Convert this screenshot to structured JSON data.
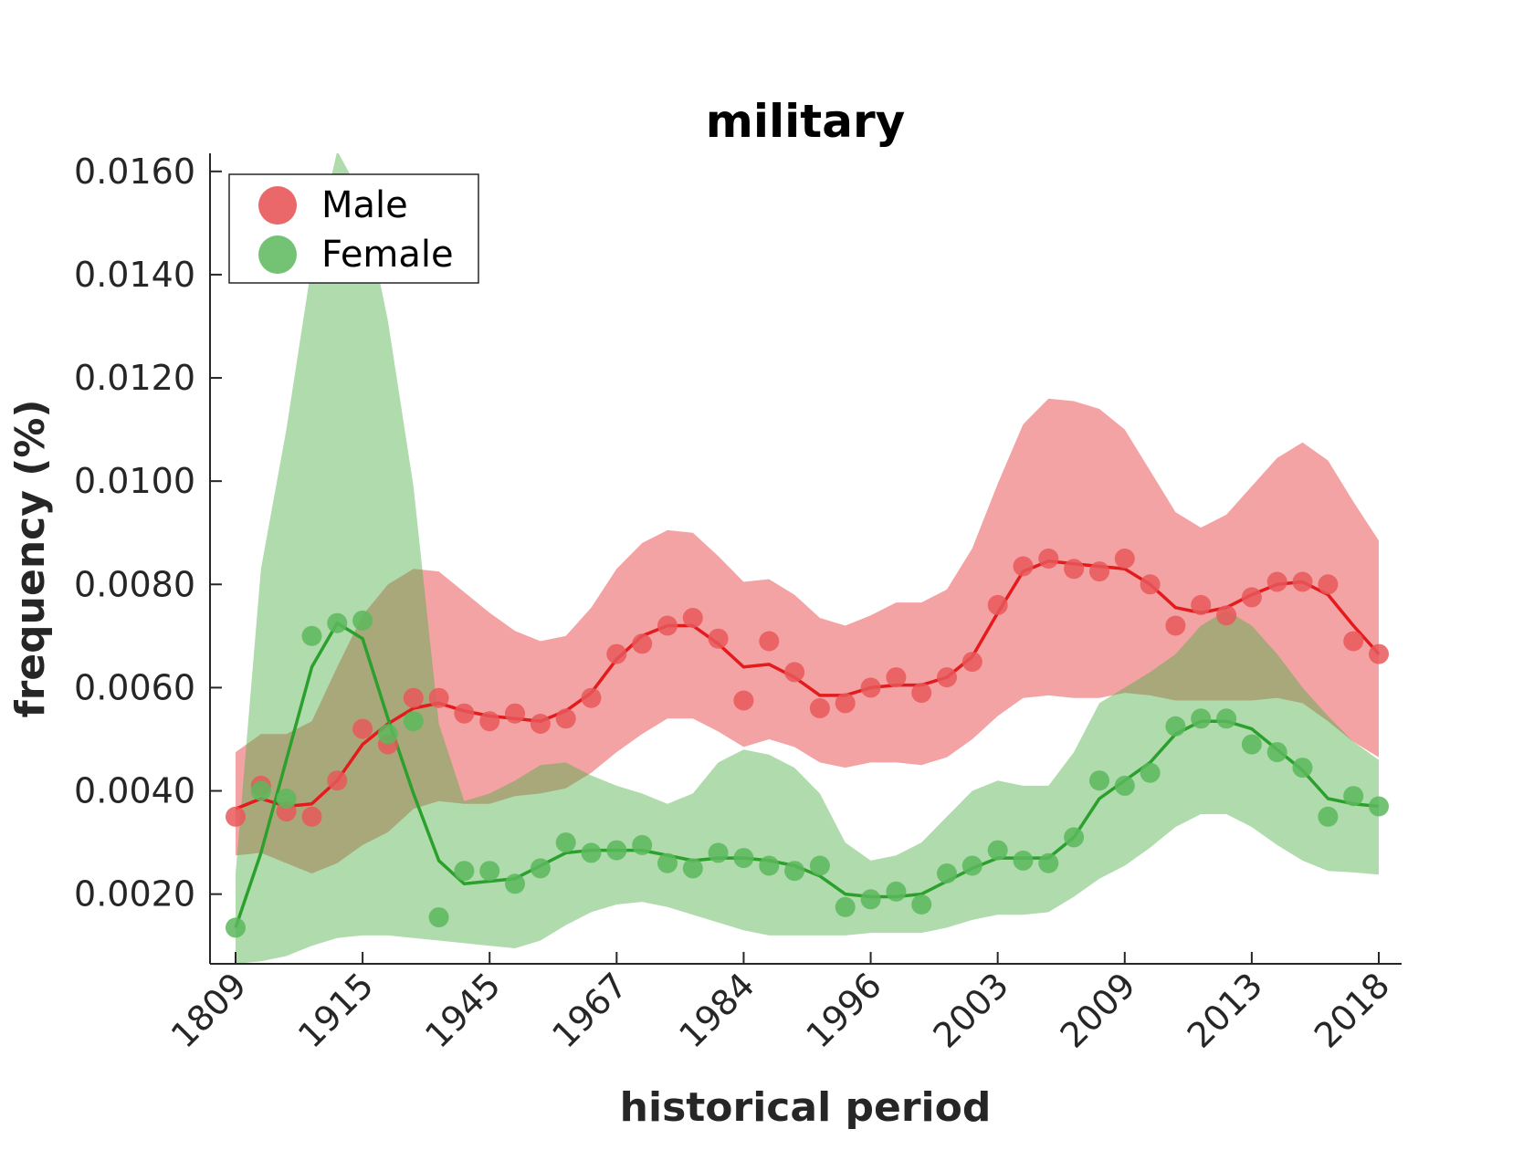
{
  "chart_data": {
    "type": "line",
    "title": "military",
    "xlabel": "historical period",
    "ylabel": "frequency (%)",
    "x_tick_labels": [
      "1809",
      "1915",
      "1945",
      "1967",
      "1984",
      "1996",
      "2003",
      "2009",
      "2013",
      "2018"
    ],
    "y_tick_labels": [
      "0.0020",
      "0.0040",
      "0.0060",
      "0.0080",
      "0.0100",
      "0.0120",
      "0.0140",
      "0.0160"
    ],
    "y_ticks": [
      0.002,
      0.004,
      0.006,
      0.008,
      0.01,
      0.012,
      0.014,
      0.016
    ],
    "ylim": [
      0.00065,
      0.01635
    ],
    "num_periods": 46,
    "x_tick_positions": [
      0,
      5,
      10,
      15,
      20,
      25,
      30,
      35,
      40,
      45
    ],
    "legend_position": "top-left",
    "grid": false,
    "series": [
      {
        "name": "Male",
        "color": "#e41a1c",
        "fill_color": "#e41a1c",
        "marker_color": "#e8585a",
        "points": [
          0.0035,
          0.0041,
          0.0036,
          0.0035,
          0.0042,
          0.0052,
          0.0049,
          0.0058,
          0.0058,
          0.0055,
          0.00535,
          0.0055,
          0.0053,
          0.0054,
          0.0058,
          0.00665,
          0.00685,
          0.0072,
          0.00735,
          0.00695,
          0.00575,
          0.0069,
          0.0063,
          0.0056,
          0.0057,
          0.006,
          0.0062,
          0.0059,
          0.0062,
          0.0065,
          0.0076,
          0.00835,
          0.0085,
          0.0083,
          0.00825,
          0.0085,
          0.008,
          0.0072,
          0.0076,
          0.0074,
          0.00775,
          0.00805,
          0.00805,
          0.008,
          0.0069,
          0.00665
        ],
        "trend": [
          0.00365,
          0.00385,
          0.0037,
          0.00375,
          0.0042,
          0.0049,
          0.0053,
          0.0056,
          0.0057,
          0.00555,
          0.00545,
          0.0054,
          0.00535,
          0.00555,
          0.0059,
          0.00655,
          0.007,
          0.0072,
          0.0072,
          0.00685,
          0.0064,
          0.00645,
          0.0062,
          0.00585,
          0.00585,
          0.006,
          0.00605,
          0.00605,
          0.0062,
          0.0066,
          0.00745,
          0.00825,
          0.00845,
          0.0084,
          0.00835,
          0.0083,
          0.008,
          0.00755,
          0.00745,
          0.00755,
          0.0078,
          0.008,
          0.00805,
          0.0078,
          0.0072,
          0.00665
        ],
        "upper": [
          0.00475,
          0.0051,
          0.0051,
          0.00535,
          0.0064,
          0.0074,
          0.008,
          0.0083,
          0.00825,
          0.00785,
          0.00745,
          0.0071,
          0.0069,
          0.007,
          0.00755,
          0.0083,
          0.0088,
          0.00905,
          0.009,
          0.00855,
          0.00805,
          0.0081,
          0.0078,
          0.00735,
          0.0072,
          0.0074,
          0.00765,
          0.00765,
          0.0079,
          0.0087,
          0.00995,
          0.0111,
          0.0116,
          0.01155,
          0.0114,
          0.011,
          0.0102,
          0.0094,
          0.0091,
          0.00935,
          0.0099,
          0.01045,
          0.01075,
          0.0104,
          0.0096,
          0.00885
        ],
        "lower": [
          0.00275,
          0.0028,
          0.0026,
          0.0024,
          0.0026,
          0.00295,
          0.0032,
          0.00365,
          0.0038,
          0.00375,
          0.00375,
          0.0039,
          0.00395,
          0.00405,
          0.00435,
          0.00475,
          0.0051,
          0.0054,
          0.0054,
          0.00515,
          0.00485,
          0.005,
          0.00485,
          0.00455,
          0.00445,
          0.00455,
          0.00455,
          0.0045,
          0.00465,
          0.005,
          0.00545,
          0.0058,
          0.00585,
          0.0058,
          0.0058,
          0.0059,
          0.00585,
          0.00575,
          0.00575,
          0.00575,
          0.00575,
          0.0058,
          0.0057,
          0.00535,
          0.00495,
          0.00465
        ]
      },
      {
        "name": "Female",
        "color": "#2ca02c",
        "fill_color": "#4daf4a",
        "marker_color": "#5cb85c",
        "points": [
          0.00135,
          0.004,
          0.00385,
          0.007,
          0.00725,
          0.0073,
          0.0051,
          0.00535,
          0.00155,
          0.00245,
          0.00245,
          0.0022,
          0.0025,
          0.003,
          0.0028,
          0.00285,
          0.00295,
          0.0026,
          0.0025,
          0.0028,
          0.0027,
          0.00255,
          0.00245,
          0.00255,
          0.00175,
          0.0019,
          0.00205,
          0.0018,
          0.0024,
          0.00255,
          0.00285,
          0.00265,
          0.0026,
          0.0031,
          0.0042,
          0.0041,
          0.00435,
          0.00525,
          0.0054,
          0.0054,
          0.0049,
          0.00475,
          0.00445,
          0.0035,
          0.0039,
          0.0037
        ],
        "trend": [
          0.00135,
          0.0028,
          0.0046,
          0.0064,
          0.00725,
          0.00695,
          0.0054,
          0.00395,
          0.00265,
          0.0022,
          0.00225,
          0.0023,
          0.00255,
          0.0028,
          0.00285,
          0.00285,
          0.00285,
          0.00275,
          0.00265,
          0.0027,
          0.0027,
          0.00265,
          0.00255,
          0.00235,
          0.002,
          0.00195,
          0.00195,
          0.002,
          0.00225,
          0.0025,
          0.0027,
          0.0027,
          0.0027,
          0.0031,
          0.00385,
          0.0042,
          0.00455,
          0.0051,
          0.00535,
          0.00535,
          0.0052,
          0.0048,
          0.0044,
          0.00385,
          0.00375,
          0.0037
        ],
        "upper": [
          0.0024,
          0.0083,
          0.011,
          0.0142,
          0.0164,
          0.0155,
          0.0131,
          0.0099,
          0.0053,
          0.0038,
          0.00395,
          0.0042,
          0.0045,
          0.00455,
          0.0043,
          0.0041,
          0.00395,
          0.00375,
          0.00395,
          0.00455,
          0.0048,
          0.0047,
          0.00445,
          0.00395,
          0.003,
          0.00265,
          0.00275,
          0.003,
          0.0035,
          0.004,
          0.0042,
          0.0041,
          0.0041,
          0.00475,
          0.0057,
          0.006,
          0.0063,
          0.00665,
          0.0072,
          0.0075,
          0.0072,
          0.00665,
          0.006,
          0.00545,
          0.00495,
          0.0046
        ],
        "lower": [
          0.00065,
          0.0007,
          0.0008,
          0.001,
          0.00115,
          0.0012,
          0.0012,
          0.00115,
          0.0011,
          0.00105,
          0.001,
          0.00095,
          0.0011,
          0.0014,
          0.00165,
          0.0018,
          0.00185,
          0.00175,
          0.0016,
          0.00145,
          0.0013,
          0.0012,
          0.0012,
          0.0012,
          0.0012,
          0.00125,
          0.00125,
          0.00125,
          0.00135,
          0.0015,
          0.0016,
          0.0016,
          0.00165,
          0.00195,
          0.0023,
          0.00255,
          0.0029,
          0.0033,
          0.00355,
          0.00355,
          0.0033,
          0.00295,
          0.00265,
          0.00245,
          0.00242,
          0.00238
        ]
      }
    ]
  }
}
